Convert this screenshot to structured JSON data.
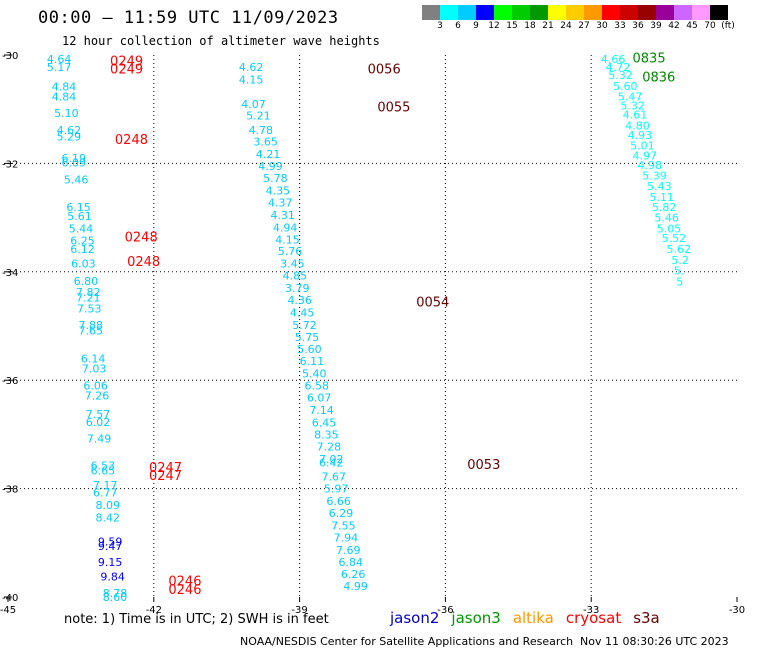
{
  "header": {
    "title": "00:00 — 11:59 UTC 11/09/2023",
    "subtitle": "12 hour collection of altimeter wave heights"
  },
  "colorbar": {
    "colors": [
      "#808080",
      "#00ffff",
      "#00ccff",
      "#0000ff",
      "#00ff00",
      "#00cc00",
      "#009900",
      "#ffff00",
      "#ffcc00",
      "#ff9900",
      "#ff0000",
      "#cc0000",
      "#990000",
      "#990099",
      "#cc66ff",
      "#ff99ff",
      "#000000"
    ],
    "ticks": [
      "3",
      "6",
      "9",
      "12",
      "15",
      "18",
      "21",
      "24",
      "27",
      "30",
      "33",
      "36",
      "39",
      "42",
      "45",
      "70",
      "(ft)"
    ]
  },
  "axes": {
    "lon_labels": [
      "-45",
      "-42",
      "-39",
      "-36",
      "-33",
      "-30"
    ],
    "lat_labels": [
      "-30",
      "-32",
      "-34",
      "-36",
      "-38",
      "-40"
    ],
    "lon_range": [
      -45,
      -30
    ],
    "lat_range": [
      -40,
      -30
    ]
  },
  "tracks": [
    {
      "sat": "cryosat",
      "color": "#ff0000",
      "pass_labels": [
        {
          "text": "0249",
          "lon": -42.9,
          "lat": -30.1
        },
        {
          "text": "0249",
          "lon": -42.9,
          "lat": -30.25
        },
        {
          "text": "0248",
          "lon": -42.8,
          "lat": -31.55
        },
        {
          "text": "0248",
          "lon": -42.6,
          "lat": -33.35
        },
        {
          "text": "0248",
          "lon": -42.55,
          "lat": -33.8
        },
        {
          "text": "0247",
          "lon": -42.1,
          "lat": -37.6
        },
        {
          "text": "0247",
          "lon": -42.1,
          "lat": -37.75
        },
        {
          "text": "0246",
          "lon": -41.7,
          "lat": -39.7
        },
        {
          "text": "0246",
          "lon": -41.7,
          "lat": -39.85
        }
      ],
      "points": [
        {
          "v": "4.64",
          "lon": -44.2,
          "lat": -30.07,
          "c": "#00ccff"
        },
        {
          "v": "5.17",
          "lon": -44.2,
          "lat": -30.22,
          "c": "#00ccff"
        },
        {
          "v": "4.84",
          "lon": -44.1,
          "lat": -30.58,
          "c": "#00ccff"
        },
        {
          "v": "4.84",
          "lon": -44.1,
          "lat": -30.77,
          "c": "#00ccff"
        },
        {
          "v": "5.10",
          "lon": -44.05,
          "lat": -31.07,
          "c": "#00ccff"
        },
        {
          "v": "4.62",
          "lon": -44.0,
          "lat": -31.38,
          "c": "#00ccff"
        },
        {
          "v": "5.29",
          "lon": -44.0,
          "lat": -31.5,
          "c": "#00ccff"
        },
        {
          "v": "6.19",
          "lon": -43.9,
          "lat": -31.9,
          "c": "#00ccff"
        },
        {
          "v": "6.09",
          "lon": -43.9,
          "lat": -31.98,
          "c": "#00ccff"
        },
        {
          "v": "5.46",
          "lon": -43.85,
          "lat": -32.3,
          "c": "#00ccff"
        },
        {
          "v": "6.15",
          "lon": -43.8,
          "lat": -32.8,
          "c": "#00ccff"
        },
        {
          "v": "5.61",
          "lon": -43.78,
          "lat": -32.97,
          "c": "#00ccff"
        },
        {
          "v": "5.44",
          "lon": -43.75,
          "lat": -33.2,
          "c": "#00ccff"
        },
        {
          "v": "6.25",
          "lon": -43.72,
          "lat": -33.42,
          "c": "#00ccff"
        },
        {
          "v": "6.12",
          "lon": -43.72,
          "lat": -33.58,
          "c": "#00ccff"
        },
        {
          "v": "6.03",
          "lon": -43.7,
          "lat": -33.85,
          "c": "#00ccff"
        },
        {
          "v": "6.80",
          "lon": -43.65,
          "lat": -34.17,
          "c": "#00ccff"
        },
        {
          "v": "7.82",
          "lon": -43.6,
          "lat": -34.37,
          "c": "#00ccff"
        },
        {
          "v": "7.21",
          "lon": -43.6,
          "lat": -34.47,
          "c": "#00ccff"
        },
        {
          "v": "7.53",
          "lon": -43.58,
          "lat": -34.68,
          "c": "#00ccff"
        },
        {
          "v": "7.88",
          "lon": -43.55,
          "lat": -34.98,
          "c": "#00ccff"
        },
        {
          "v": "7.65",
          "lon": -43.55,
          "lat": -35.08,
          "c": "#00ccff"
        },
        {
          "v": "6.14",
          "lon": -43.5,
          "lat": -35.6,
          "c": "#00ccff"
        },
        {
          "v": "7.03",
          "lon": -43.48,
          "lat": -35.78,
          "c": "#00ccff"
        },
        {
          "v": "6.06",
          "lon": -43.45,
          "lat": -36.1,
          "c": "#00ccff"
        },
        {
          "v": "7.26",
          "lon": -43.42,
          "lat": -36.28,
          "c": "#00ccff"
        },
        {
          "v": "7.57",
          "lon": -43.4,
          "lat": -36.62,
          "c": "#00ccff"
        },
        {
          "v": "6.02",
          "lon": -43.4,
          "lat": -36.77,
          "c": "#00ccff"
        },
        {
          "v": "7.49",
          "lon": -43.38,
          "lat": -37.08,
          "c": "#00ccff"
        },
        {
          "v": "6.53",
          "lon": -43.3,
          "lat": -37.57,
          "c": "#00ccff"
        },
        {
          "v": "6.65",
          "lon": -43.3,
          "lat": -37.67,
          "c": "#00ccff"
        },
        {
          "v": "7.17",
          "lon": -43.25,
          "lat": -37.93,
          "c": "#00ccff"
        },
        {
          "v": "6.77",
          "lon": -43.25,
          "lat": -38.07,
          "c": "#00ccff"
        },
        {
          "v": "8.09",
          "lon": -43.2,
          "lat": -38.3,
          "c": "#00ccff"
        },
        {
          "v": "8.42",
          "lon": -43.2,
          "lat": -38.53,
          "c": "#00ccff"
        },
        {
          "v": "9.59",
          "lon": -43.15,
          "lat": -38.98,
          "c": "#0000ff"
        },
        {
          "v": "9.47",
          "lon": -43.15,
          "lat": -39.06,
          "c": "#0000ff"
        },
        {
          "v": "9.15",
          "lon": -43.15,
          "lat": -39.35,
          "c": "#0000ff"
        },
        {
          "v": "9.84",
          "lon": -43.1,
          "lat": -39.62,
          "c": "#0000ff"
        },
        {
          "v": "8.78",
          "lon": -43.05,
          "lat": -39.93,
          "c": "#00ccff"
        },
        {
          "v": "8.60",
          "lon": -43.05,
          "lat": -40.0,
          "c": "#00ccff"
        }
      ]
    },
    {
      "sat": "s3a",
      "color": "#660000",
      "pass_labels": [
        {
          "text": "0056",
          "lon": -37.6,
          "lat": -30.25
        },
        {
          "text": "0055",
          "lon": -37.4,
          "lat": -30.95
        },
        {
          "text": "0054",
          "lon": -36.6,
          "lat": -34.55
        },
        {
          "text": "0053",
          "lon": -35.55,
          "lat": -37.55
        }
      ],
      "points": [
        {
          "v": "4.62",
          "lon": -40.25,
          "lat": -30.22,
          "c": "#00ccff"
        },
        {
          "v": "4.15",
          "lon": -40.25,
          "lat": -30.45,
          "c": "#00ccff"
        },
        {
          "v": "4.07",
          "lon": -40.2,
          "lat": -30.9,
          "c": "#00ccff"
        },
        {
          "v": "5.21",
          "lon": -40.1,
          "lat": -31.12,
          "c": "#00ccff"
        },
        {
          "v": "4.78",
          "lon": -40.05,
          "lat": -31.38,
          "c": "#00ccff"
        },
        {
          "v": "3.65",
          "lon": -39.95,
          "lat": -31.6,
          "c": "#00ccff"
        },
        {
          "v": "4.21",
          "lon": -39.9,
          "lat": -31.83,
          "c": "#00ccff"
        },
        {
          "v": "4.99",
          "lon": -39.85,
          "lat": -32.05,
          "c": "#00ccff"
        },
        {
          "v": "5.78",
          "lon": -39.75,
          "lat": -32.27,
          "c": "#00ccff"
        },
        {
          "v": "4.35",
          "lon": -39.7,
          "lat": -32.5,
          "c": "#00ccff"
        },
        {
          "v": "4.37",
          "lon": -39.65,
          "lat": -32.72,
          "c": "#00ccff"
        },
        {
          "v": "4.31",
          "lon": -39.6,
          "lat": -32.95,
          "c": "#00ccff"
        },
        {
          "v": "4.94",
          "lon": -39.55,
          "lat": -33.18,
          "c": "#00ccff"
        },
        {
          "v": "4.15",
          "lon": -39.5,
          "lat": -33.4,
          "c": "#00ccff"
        },
        {
          "v": "5.76",
          "lon": -39.45,
          "lat": -33.62,
          "c": "#00ccff"
        },
        {
          "v": "3.45",
          "lon": -39.4,
          "lat": -33.85,
          "c": "#00ccff"
        },
        {
          "v": "4.85",
          "lon": -39.35,
          "lat": -34.07,
          "c": "#00ccff"
        },
        {
          "v": "3.79",
          "lon": -39.3,
          "lat": -34.3,
          "c": "#00ccff"
        },
        {
          "v": "4.36",
          "lon": -39.25,
          "lat": -34.52,
          "c": "#00ccff"
        },
        {
          "v": "4.45",
          "lon": -39.2,
          "lat": -34.75,
          "c": "#00ccff"
        },
        {
          "v": "5.72",
          "lon": -39.15,
          "lat": -34.98,
          "c": "#00ccff"
        },
        {
          "v": "5.75",
          "lon": -39.1,
          "lat": -35.2,
          "c": "#00ccff"
        },
        {
          "v": "5.60",
          "lon": -39.05,
          "lat": -35.42,
          "c": "#00ccff"
        },
        {
          "v": "6.11",
          "lon": -39.0,
          "lat": -35.65,
          "c": "#00ccff"
        },
        {
          "v": "5.40",
          "lon": -38.95,
          "lat": -35.88,
          "c": "#00ccff"
        },
        {
          "v": "6.58",
          "lon": -38.9,
          "lat": -36.1,
          "c": "#00ccff"
        },
        {
          "v": "6.07",
          "lon": -38.85,
          "lat": -36.32,
          "c": "#00ccff"
        },
        {
          "v": "7.14",
          "lon": -38.8,
          "lat": -36.55,
          "c": "#00ccff"
        },
        {
          "v": "6.45",
          "lon": -38.75,
          "lat": -36.78,
          "c": "#00ccff"
        },
        {
          "v": "8.35",
          "lon": -38.7,
          "lat": -37.0,
          "c": "#00ccff"
        },
        {
          "v": "7.28",
          "lon": -38.65,
          "lat": -37.22,
          "c": "#00ccff"
        },
        {
          "v": "7.02",
          "lon": -38.6,
          "lat": -37.45,
          "c": "#00ccff"
        },
        {
          "v": "6.42",
          "lon": -38.6,
          "lat": -37.52,
          "c": "#00ccff"
        },
        {
          "v": "7.67",
          "lon": -38.55,
          "lat": -37.78,
          "c": "#00ccff"
        },
        {
          "v": "5.97",
          "lon": -38.5,
          "lat": -38.0,
          "c": "#00ccff"
        },
        {
          "v": "6.66",
          "lon": -38.45,
          "lat": -38.23,
          "c": "#00ccff"
        },
        {
          "v": "6.29",
          "lon": -38.4,
          "lat": -38.45,
          "c": "#00ccff"
        },
        {
          "v": "7.55",
          "lon": -38.35,
          "lat": -38.68,
          "c": "#00ccff"
        },
        {
          "v": "7.94",
          "lon": -38.3,
          "lat": -38.9,
          "c": "#00ccff"
        },
        {
          "v": "7.69",
          "lon": -38.25,
          "lat": -39.13,
          "c": "#00ccff"
        },
        {
          "v": "6.84",
          "lon": -38.2,
          "lat": -39.35,
          "c": "#00ccff"
        },
        {
          "v": "6.26",
          "lon": -38.15,
          "lat": -39.58,
          "c": "#00ccff"
        },
        {
          "v": "4.99",
          "lon": -38.1,
          "lat": -39.8,
          "c": "#00ccff"
        }
      ]
    },
    {
      "sat": "jason3",
      "color": "#008800",
      "pass_labels": [
        {
          "text": "0835",
          "lon": -32.15,
          "lat": -30.05
        },
        {
          "text": "0836",
          "lon": -31.95,
          "lat": -30.4
        }
      ],
      "points": [
        {
          "v": "4.66",
          "lon": -32.8,
          "lat": -30.07,
          "c": "#00ffff"
        },
        {
          "v": "4.72",
          "lon": -32.7,
          "lat": -30.22,
          "c": "#00ffff"
        },
        {
          "v": "5.32",
          "lon": -32.65,
          "lat": -30.37,
          "c": "#00ffff"
        },
        {
          "v": "5.60",
          "lon": -32.55,
          "lat": -30.57,
          "c": "#00ffff"
        },
        {
          "v": "5.47",
          "lon": -32.45,
          "lat": -30.77,
          "c": "#00ffff"
        },
        {
          "v": "5.32",
          "lon": -32.4,
          "lat": -30.93,
          "c": "#00ffff"
        },
        {
          "v": "4.61",
          "lon": -32.35,
          "lat": -31.1,
          "c": "#00ffff"
        },
        {
          "v": "4.80",
          "lon": -32.3,
          "lat": -31.3,
          "c": "#00ffff"
        },
        {
          "v": "4.93",
          "lon": -32.25,
          "lat": -31.48,
          "c": "#00ffff"
        },
        {
          "v": "5.01",
          "lon": -32.2,
          "lat": -31.67,
          "c": "#00ffff"
        },
        {
          "v": "4.97",
          "lon": -32.15,
          "lat": -31.85,
          "c": "#00ffff"
        },
        {
          "v": "4.98",
          "lon": -32.05,
          "lat": -32.03,
          "c": "#00ffff"
        },
        {
          "v": "5.39",
          "lon": -31.95,
          "lat": -32.22,
          "c": "#00ffff"
        },
        {
          "v": "5.43",
          "lon": -31.85,
          "lat": -32.42,
          "c": "#00ffff"
        },
        {
          "v": "5.11",
          "lon": -31.8,
          "lat": -32.62,
          "c": "#00ffff"
        },
        {
          "v": "5.82",
          "lon": -31.75,
          "lat": -32.8,
          "c": "#00ffff"
        },
        {
          "v": "5.46",
          "lon": -31.7,
          "lat": -33.0,
          "c": "#00ffff"
        },
        {
          "v": "5.05",
          "lon": -31.65,
          "lat": -33.2,
          "c": "#00ffff"
        },
        {
          "v": "5.52",
          "lon": -31.55,
          "lat": -33.38,
          "c": "#00ffff"
        },
        {
          "v": "5.62",
          "lon": -31.45,
          "lat": -33.58,
          "c": "#00ffff"
        },
        {
          "v": "5.2",
          "lon": -31.35,
          "lat": -33.78,
          "c": "#00ffff"
        },
        {
          "v": "5.",
          "lon": -31.3,
          "lat": -33.98,
          "c": "#00ffff"
        },
        {
          "v": "5",
          "lon": -31.25,
          "lat": -34.18,
          "c": "#00ffff"
        }
      ]
    }
  ],
  "legend": {
    "note": "note: 1) Time is in UTC; 2) SWH is in feet",
    "satellites": [
      {
        "name": "jason2",
        "color": "#0000cc"
      },
      {
        "name": "jason3",
        "color": "#009900"
      },
      {
        "name": "altika",
        "color": "#ff9900"
      },
      {
        "name": "cryosat",
        "color": "#ff0000"
      },
      {
        "name": "s3a",
        "color": "#660000"
      }
    ]
  },
  "footer": {
    "left": "NOAA/NESDIS Center for Satellite Applications and Research",
    "right": "Nov 11 08:30:26 UTC 2023"
  }
}
